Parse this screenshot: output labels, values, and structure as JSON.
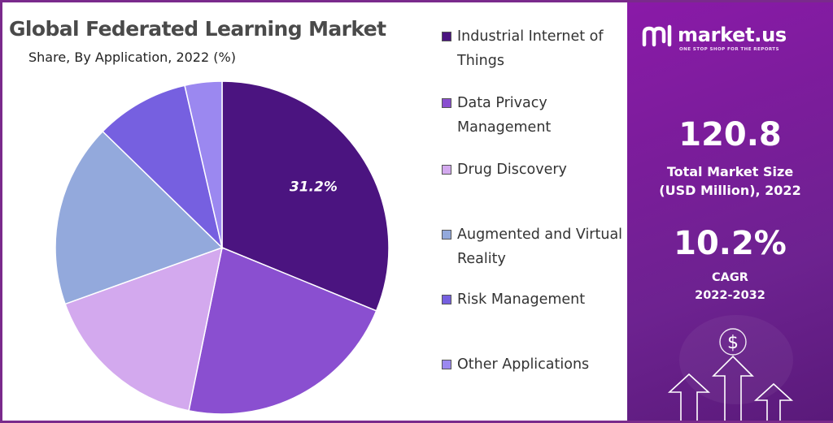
{
  "chart_data": {
    "type": "pie",
    "title": "Global Federated Learning Market",
    "subtitle": "Share, By Application, 2022 (%)",
    "slices": [
      {
        "name": "Industrial Internet of Things",
        "value": 31.2,
        "color": "#4b1480",
        "label": "31.2%"
      },
      {
        "name": "Data Privacy Management",
        "value": 22.0,
        "color": "#8a4fd0"
      },
      {
        "name": "Drug Discovery",
        "value": 16.3,
        "color": "#d3a9ee"
      },
      {
        "name": "Augmented and Virtual Reality",
        "value": 17.8,
        "color": "#93a9dc"
      },
      {
        "name": "Risk Management",
        "value": 9.1,
        "color": "#7660e0"
      },
      {
        "name": "Other Applications",
        "value": 3.6,
        "color": "#9b88f0"
      }
    ],
    "legend": {
      "position": "right"
    }
  },
  "brand": {
    "name": "market.us",
    "tagline": "ONE STOP SHOP FOR THE REPORTS"
  },
  "stats": {
    "market_size_value": "120.8",
    "market_size_label_line1": "Total Market Size",
    "market_size_label_line2": "(USD Million), 2022",
    "cagr_value": "10.2%",
    "cagr_label_line1": "CAGR",
    "cagr_label_line2": "2022-2032"
  },
  "decor": {
    "dollar_glyph": "$"
  },
  "colors": {
    "panel_purple": "#7a1d9a",
    "border": "#7a2a8c"
  }
}
